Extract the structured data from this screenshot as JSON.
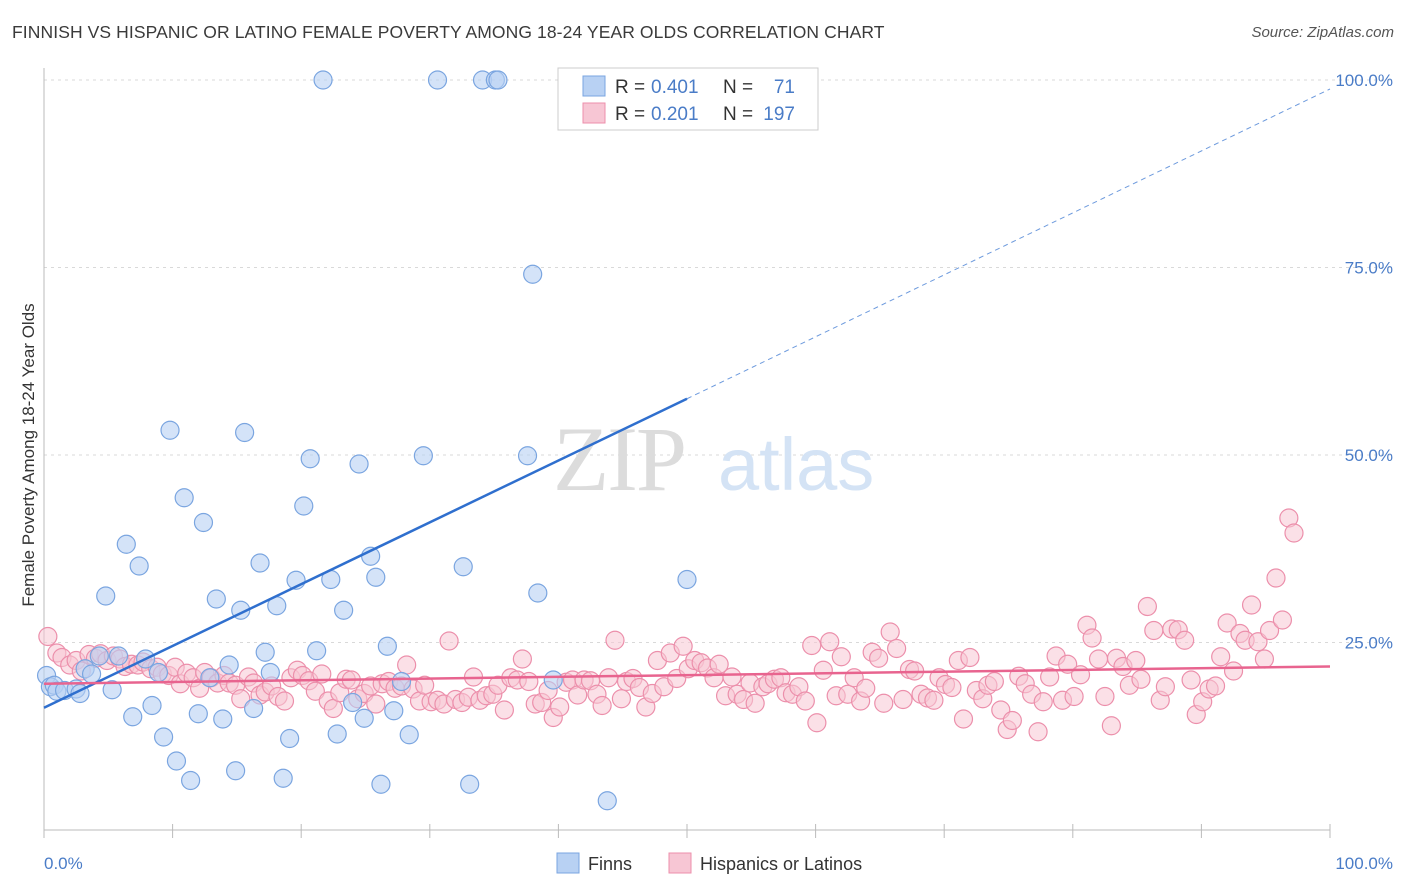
{
  "title": "FINNISH VS HISPANIC OR LATINO FEMALE POVERTY AMONG 18-24 YEAR OLDS CORRELATION CHART",
  "source": "Source: ZipAtlas.com",
  "watermark": {
    "zip": "ZIP",
    "atlas": "atlas"
  },
  "colors": {
    "finns_fill": "#b8d1f3",
    "finns_stroke": "#7aa5e0",
    "finns_line": "#2f6fce",
    "hisp_fill": "#f7c6d4",
    "hisp_stroke": "#ec8fab",
    "hisp_line": "#e8648f",
    "accent_text": "#4a7cc7",
    "grid": "#d9d9d9"
  },
  "legend": {
    "rows": [
      {
        "r_label": "R =",
        "r_value": "0.401",
        "n_label": "N =",
        "n_value": "71"
      },
      {
        "r_label": "R =",
        "r_value": "0.201",
        "n_label": "N =",
        "n_value": "197"
      }
    ]
  },
  "chart_data": {
    "type": "scatter",
    "title": "FINNISH VS HISPANIC OR LATINO FEMALE POVERTY AMONG 18-24 YEAR OLDS CORRELATION CHART",
    "xlabel": "",
    "ylabel": "Female Poverty Among 18-24 Year Olds",
    "xlim": [
      0,
      100
    ],
    "ylim": [
      0,
      100
    ],
    "x_tick_labels": [
      "0.0%",
      "100.0%"
    ],
    "y_tick_labels": [
      "25.0%",
      "50.0%",
      "75.0%",
      "100.0%"
    ],
    "y_ticks": [
      25,
      50,
      75,
      100
    ],
    "grid": true,
    "legend_position": "top-center",
    "series": [
      {
        "name": "Finns",
        "R": 0.401,
        "N": 71,
        "trend": {
          "x0": 0,
          "y0": 16.3,
          "x1": 50,
          "y1": 57.5,
          "dashed_to_x": 100,
          "dashed_to_y": 98.8
        },
        "points": [
          [
            0.2,
            20.6
          ],
          [
            0.5,
            19.1
          ],
          [
            0.8,
            19.3
          ],
          [
            1.0,
            18.5
          ],
          [
            1.6,
            18.6
          ],
          [
            2.5,
            18.8
          ],
          [
            2.8,
            18.2
          ],
          [
            3.2,
            21.5
          ],
          [
            3.7,
            20.8
          ],
          [
            4.3,
            23.2
          ],
          [
            4.8,
            31.2
          ],
          [
            5.3,
            18.7
          ],
          [
            5.8,
            23.2
          ],
          [
            6.4,
            38.1
          ],
          [
            6.9,
            15.1
          ],
          [
            7.4,
            35.2
          ],
          [
            7.9,
            22.8
          ],
          [
            8.4,
            16.6
          ],
          [
            8.9,
            21.0
          ],
          [
            9.3,
            12.4
          ],
          [
            9.8,
            53.3
          ],
          [
            10.3,
            9.2
          ],
          [
            10.9,
            44.3
          ],
          [
            11.4,
            6.6
          ],
          [
            12.0,
            15.5
          ],
          [
            12.4,
            41.0
          ],
          [
            12.9,
            20.3
          ],
          [
            13.4,
            30.8
          ],
          [
            13.9,
            14.8
          ],
          [
            14.4,
            22.0
          ],
          [
            14.9,
            7.9
          ],
          [
            15.3,
            29.3
          ],
          [
            15.6,
            53.0
          ],
          [
            16.3,
            16.2
          ],
          [
            16.8,
            35.6
          ],
          [
            17.2,
            23.7
          ],
          [
            17.6,
            21.0
          ],
          [
            18.1,
            29.9
          ],
          [
            18.6,
            6.9
          ],
          [
            19.1,
            12.2
          ],
          [
            19.6,
            33.3
          ],
          [
            20.2,
            43.2
          ],
          [
            20.7,
            49.5
          ],
          [
            21.2,
            23.9
          ],
          [
            21.7,
            100.0
          ],
          [
            22.3,
            33.4
          ],
          [
            22.8,
            12.8
          ],
          [
            23.3,
            29.3
          ],
          [
            24.0,
            17.0
          ],
          [
            24.5,
            48.8
          ],
          [
            24.9,
            14.9
          ],
          [
            25.4,
            36.5
          ],
          [
            25.8,
            33.7
          ],
          [
            26.2,
            6.1
          ],
          [
            26.7,
            24.5
          ],
          [
            27.2,
            15.9
          ],
          [
            27.8,
            19.8
          ],
          [
            28.4,
            12.7
          ],
          [
            29.5,
            49.9
          ],
          [
            30.6,
            100.0
          ],
          [
            32.6,
            35.1
          ],
          [
            33.1,
            6.1
          ],
          [
            34.1,
            100.0
          ],
          [
            35.1,
            100.0
          ],
          [
            35.3,
            100.0
          ],
          [
            37.6,
            49.9
          ],
          [
            38.0,
            74.1
          ],
          [
            38.4,
            31.6
          ],
          [
            39.6,
            20.0
          ],
          [
            43.8,
            3.9
          ],
          [
            50.0,
            33.4
          ]
        ]
      },
      {
        "name": "Hispanics or Latinos",
        "R": 0.201,
        "N": 197,
        "trend": {
          "x0": 0,
          "y0": 19.5,
          "x1": 100,
          "y1": 21.8
        },
        "points": [
          [
            0.3,
            25.8
          ],
          [
            1.0,
            23.6
          ],
          [
            1.4,
            23.0
          ],
          [
            2.0,
            22.0
          ],
          [
            2.5,
            22.6
          ],
          [
            2.9,
            21.2
          ],
          [
            3.5,
            23.4
          ],
          [
            4.0,
            22.9
          ],
          [
            4.4,
            23.5
          ],
          [
            4.9,
            22.6
          ],
          [
            5.4,
            23.2
          ],
          [
            5.9,
            22.8
          ],
          [
            6.3,
            21.8
          ],
          [
            6.8,
            22.1
          ],
          [
            7.3,
            22.0
          ],
          [
            7.7,
            22.4
          ],
          [
            8.3,
            21.5
          ],
          [
            8.8,
            21.7
          ],
          [
            9.2,
            20.8
          ],
          [
            9.7,
            20.6
          ],
          [
            10.2,
            21.7
          ],
          [
            10.6,
            19.5
          ],
          [
            11.1,
            20.9
          ],
          [
            11.6,
            20.3
          ],
          [
            12.1,
            18.9
          ],
          [
            12.5,
            21.0
          ],
          [
            13.0,
            20.3
          ],
          [
            13.5,
            19.6
          ],
          [
            14.0,
            20.6
          ],
          [
            14.4,
            19.6
          ],
          [
            14.9,
            19.3
          ],
          [
            15.3,
            17.5
          ],
          [
            15.9,
            20.4
          ],
          [
            16.3,
            19.6
          ],
          [
            16.8,
            18.0
          ],
          [
            17.2,
            18.4
          ],
          [
            17.7,
            19.2
          ],
          [
            18.2,
            17.8
          ],
          [
            18.7,
            17.2
          ],
          [
            19.2,
            20.3
          ],
          [
            19.7,
            21.3
          ],
          [
            20.1,
            20.6
          ],
          [
            20.6,
            19.9
          ],
          [
            21.1,
            18.5
          ],
          [
            21.6,
            20.8
          ],
          [
            22.1,
            17.2
          ],
          [
            22.5,
            16.2
          ],
          [
            23.0,
            18.3
          ],
          [
            23.5,
            20.1
          ],
          [
            23.9,
            20.0
          ],
          [
            24.4,
            17.5
          ],
          [
            24.9,
            18.2
          ],
          [
            25.4,
            19.2
          ],
          [
            25.8,
            16.8
          ],
          [
            26.3,
            19.5
          ],
          [
            26.8,
            19.8
          ],
          [
            27.3,
            18.9
          ],
          [
            27.8,
            19.2
          ],
          [
            28.2,
            22.0
          ],
          [
            28.7,
            18.8
          ],
          [
            29.2,
            17.2
          ],
          [
            29.6,
            19.3
          ],
          [
            30.1,
            17.1
          ],
          [
            30.6,
            17.3
          ],
          [
            31.1,
            16.8
          ],
          [
            31.5,
            25.2
          ],
          [
            32.0,
            17.4
          ],
          [
            32.5,
            17.0
          ],
          [
            33.0,
            17.7
          ],
          [
            33.4,
            20.4
          ],
          [
            33.9,
            17.3
          ],
          [
            34.4,
            17.9
          ],
          [
            34.9,
            18.1
          ],
          [
            35.3,
            19.3
          ],
          [
            35.8,
            16.0
          ],
          [
            36.3,
            20.3
          ],
          [
            36.8,
            20.0
          ],
          [
            37.2,
            22.8
          ],
          [
            37.7,
            19.8
          ],
          [
            38.2,
            16.8
          ],
          [
            38.7,
            17.0
          ],
          [
            39.2,
            18.6
          ],
          [
            39.6,
            15.0
          ],
          [
            40.1,
            16.4
          ],
          [
            40.6,
            19.7
          ],
          [
            41.1,
            20.0
          ],
          [
            41.5,
            18.0
          ],
          [
            42.0,
            20.0
          ],
          [
            42.5,
            19.9
          ],
          [
            43.0,
            18.1
          ],
          [
            43.4,
            16.6
          ],
          [
            43.9,
            20.3
          ],
          [
            44.4,
            25.3
          ],
          [
            44.9,
            17.5
          ],
          [
            45.3,
            19.8
          ],
          [
            45.8,
            20.2
          ],
          [
            46.3,
            19.0
          ],
          [
            46.8,
            16.4
          ],
          [
            47.3,
            18.2
          ],
          [
            47.7,
            22.6
          ],
          [
            48.2,
            19.1
          ],
          [
            48.7,
            23.6
          ],
          [
            49.2,
            20.2
          ],
          [
            49.7,
            24.5
          ],
          [
            50.1,
            21.5
          ],
          [
            50.6,
            22.6
          ],
          [
            51.1,
            22.3
          ],
          [
            51.6,
            21.6
          ],
          [
            52.1,
            20.3
          ],
          [
            52.5,
            22.1
          ],
          [
            53.0,
            17.9
          ],
          [
            53.5,
            20.4
          ],
          [
            53.9,
            18.1
          ],
          [
            54.4,
            17.4
          ],
          [
            54.9,
            19.6
          ],
          [
            55.3,
            16.9
          ],
          [
            55.9,
            19.1
          ],
          [
            56.3,
            19.5
          ],
          [
            56.8,
            20.1
          ],
          [
            57.3,
            20.3
          ],
          [
            57.7,
            18.3
          ],
          [
            58.2,
            18.1
          ],
          [
            58.7,
            19.1
          ],
          [
            59.2,
            17.2
          ],
          [
            59.7,
            24.6
          ],
          [
            60.1,
            14.3
          ],
          [
            60.6,
            21.3
          ],
          [
            61.1,
            25.1
          ],
          [
            61.6,
            17.9
          ],
          [
            62.0,
            23.1
          ],
          [
            62.5,
            18.1
          ],
          [
            63.0,
            20.3
          ],
          [
            63.5,
            17.2
          ],
          [
            63.9,
            18.9
          ],
          [
            64.4,
            23.7
          ],
          [
            64.9,
            22.9
          ],
          [
            65.3,
            16.9
          ],
          [
            65.8,
            26.4
          ],
          [
            66.3,
            24.2
          ],
          [
            66.8,
            17.4
          ],
          [
            67.3,
            21.4
          ],
          [
            67.7,
            21.2
          ],
          [
            68.2,
            18.1
          ],
          [
            68.7,
            17.6
          ],
          [
            69.2,
            17.3
          ],
          [
            69.6,
            20.3
          ],
          [
            70.1,
            19.4
          ],
          [
            70.6,
            19.0
          ],
          [
            71.1,
            22.6
          ],
          [
            71.5,
            14.8
          ],
          [
            72.0,
            23.0
          ],
          [
            72.5,
            18.6
          ],
          [
            73.0,
            17.5
          ],
          [
            73.4,
            19.3
          ],
          [
            73.9,
            19.8
          ],
          [
            74.4,
            16.0
          ],
          [
            74.9,
            13.4
          ],
          [
            75.3,
            14.6
          ],
          [
            75.8,
            20.5
          ],
          [
            76.3,
            19.5
          ],
          [
            76.8,
            18.1
          ],
          [
            77.3,
            13.1
          ],
          [
            77.7,
            17.1
          ],
          [
            78.2,
            20.4
          ],
          [
            78.7,
            23.2
          ],
          [
            79.2,
            17.3
          ],
          [
            79.6,
            22.1
          ],
          [
            80.1,
            17.8
          ],
          [
            80.6,
            20.7
          ],
          [
            81.1,
            27.3
          ],
          [
            81.5,
            25.6
          ],
          [
            82.0,
            22.8
          ],
          [
            82.5,
            17.8
          ],
          [
            83.0,
            13.9
          ],
          [
            83.4,
            22.9
          ],
          [
            83.9,
            21.8
          ],
          [
            84.4,
            19.3
          ],
          [
            84.9,
            22.6
          ],
          [
            85.3,
            20.1
          ],
          [
            85.8,
            29.8
          ],
          [
            86.3,
            26.6
          ],
          [
            86.8,
            17.3
          ],
          [
            87.2,
            19.1
          ],
          [
            87.7,
            26.8
          ],
          [
            88.2,
            26.7
          ],
          [
            88.7,
            25.3
          ],
          [
            89.2,
            20.0
          ],
          [
            89.6,
            15.4
          ],
          [
            90.1,
            17.1
          ],
          [
            90.6,
            18.8
          ],
          [
            91.1,
            19.2
          ],
          [
            91.5,
            23.1
          ],
          [
            92.0,
            27.6
          ],
          [
            92.5,
            21.2
          ],
          [
            93.0,
            26.2
          ],
          [
            93.4,
            25.3
          ],
          [
            93.9,
            30.0
          ],
          [
            94.4,
            25.1
          ],
          [
            94.9,
            22.8
          ],
          [
            95.3,
            26.6
          ],
          [
            95.8,
            33.6
          ],
          [
            96.3,
            28.0
          ],
          [
            96.8,
            41.6
          ],
          [
            97.2,
            39.6
          ]
        ]
      }
    ]
  },
  "bottom_legend": {
    "finns": "Finns",
    "hisp": "Hispanics or Latinos"
  }
}
